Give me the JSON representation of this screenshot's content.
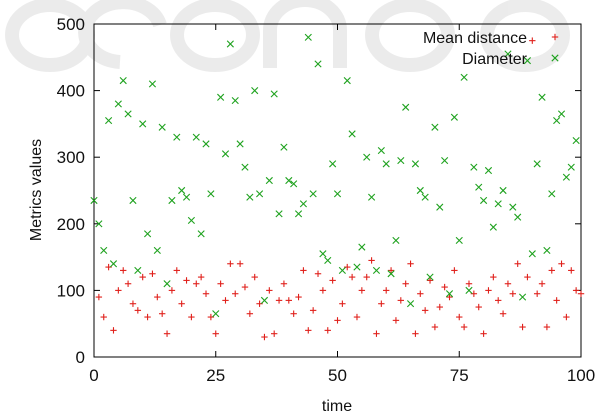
{
  "chart_data": {
    "type": "scatter",
    "title": "",
    "xlabel": "time",
    "ylabel": "Metrics values",
    "xlim": [
      0,
      100
    ],
    "ylim": [
      0,
      500
    ],
    "xticks": [
      0,
      25,
      50,
      75,
      100
    ],
    "yticks": [
      0,
      100,
      200,
      300,
      400,
      500
    ],
    "x_tick_labels": [
      "0",
      "25",
      "50",
      "75",
      "100"
    ],
    "y_tick_labels": [
      "0",
      "100",
      "200",
      "300",
      "400",
      "500"
    ],
    "grid": false,
    "legend_position": "top-right",
    "series": [
      {
        "name": "Mean distance",
        "marker": "plus",
        "color": "#e0201b",
        "points": [
          [
            1,
            90
          ],
          [
            2,
            60
          ],
          [
            3,
            135
          ],
          [
            4,
            40
          ],
          [
            5,
            100
          ],
          [
            6,
            130
          ],
          [
            7,
            110
          ],
          [
            8,
            80
          ],
          [
            9,
            70
          ],
          [
            10,
            120
          ],
          [
            11,
            60
          ],
          [
            12,
            125
          ],
          [
            13,
            90
          ],
          [
            14,
            65
          ],
          [
            15,
            35
          ],
          [
            16,
            100
          ],
          [
            17,
            130
          ],
          [
            18,
            80
          ],
          [
            19,
            115
          ],
          [
            20,
            60
          ],
          [
            21,
            110
          ],
          [
            22,
            120
          ],
          [
            23,
            95
          ],
          [
            24,
            60
          ],
          [
            25,
            35
          ],
          [
            26,
            110
          ],
          [
            27,
            85
          ],
          [
            28,
            140
          ],
          [
            29,
            95
          ],
          [
            30,
            140
          ],
          [
            31,
            105
          ],
          [
            32,
            65
          ],
          [
            33,
            120
          ],
          [
            34,
            80
          ],
          [
            35,
            30
          ],
          [
            36,
            100
          ],
          [
            37,
            35
          ],
          [
            38,
            85
          ],
          [
            39,
            110
          ],
          [
            40,
            85
          ],
          [
            41,
            65
          ],
          [
            42,
            90
          ],
          [
            43,
            130
          ],
          [
            44,
            40
          ],
          [
            45,
            70
          ],
          [
            46,
            125
          ],
          [
            47,
            100
          ],
          [
            48,
            40
          ],
          [
            49,
            115
          ],
          [
            50,
            55
          ],
          [
            51,
            80
          ],
          [
            52,
            135
          ],
          [
            53,
            120
          ],
          [
            54,
            60
          ],
          [
            55,
            100
          ],
          [
            56,
            120
          ],
          [
            57,
            145
          ],
          [
            58,
            35
          ],
          [
            59,
            80
          ],
          [
            60,
            100
          ],
          [
            61,
            130
          ],
          [
            62,
            55
          ],
          [
            63,
            85
          ],
          [
            64,
            110
          ],
          [
            65,
            140
          ],
          [
            66,
            35
          ],
          [
            67,
            95
          ],
          [
            68,
            70
          ],
          [
            69,
            115
          ],
          [
            70,
            45
          ],
          [
            71,
            75
          ],
          [
            72,
            105
          ],
          [
            73,
            90
          ],
          [
            74,
            130
          ],
          [
            75,
            60
          ],
          [
            76,
            45
          ],
          [
            77,
            110
          ],
          [
            78,
            95
          ],
          [
            79,
            75
          ],
          [
            80,
            35
          ],
          [
            81,
            100
          ],
          [
            82,
            120
          ],
          [
            83,
            85
          ],
          [
            84,
            65
          ],
          [
            85,
            110
          ],
          [
            86,
            95
          ],
          [
            87,
            140
          ],
          [
            88,
            45
          ],
          [
            89,
            120
          ],
          [
            90,
            475
          ],
          [
            91,
            95
          ],
          [
            92,
            110
          ],
          [
            93,
            45
          ],
          [
            94,
            130
          ],
          [
            95,
            85
          ],
          [
            96,
            140
          ],
          [
            97,
            60
          ],
          [
            98,
            130
          ],
          [
            99,
            100
          ],
          [
            100,
            95
          ]
        ]
      },
      {
        "name": "Diameter",
        "marker": "cross",
        "color": "#1fa21f",
        "points": [
          [
            0,
            235
          ],
          [
            1,
            200
          ],
          [
            2,
            160
          ],
          [
            3,
            355
          ],
          [
            4,
            140
          ],
          [
            5,
            380
          ],
          [
            6,
            415
          ],
          [
            7,
            365
          ],
          [
            8,
            235
          ],
          [
            9,
            130
          ],
          [
            10,
            350
          ],
          [
            11,
            185
          ],
          [
            12,
            410
          ],
          [
            13,
            160
          ],
          [
            14,
            345
          ],
          [
            15,
            110
          ],
          [
            16,
            235
          ],
          [
            17,
            330
          ],
          [
            18,
            250
          ],
          [
            19,
            240
          ],
          [
            20,
            205
          ],
          [
            21,
            330
          ],
          [
            22,
            185
          ],
          [
            23,
            320
          ],
          [
            24,
            245
          ],
          [
            25,
            65
          ],
          [
            26,
            390
          ],
          [
            27,
            305
          ],
          [
            28,
            470
          ],
          [
            29,
            385
          ],
          [
            30,
            320
          ],
          [
            31,
            285
          ],
          [
            32,
            240
          ],
          [
            33,
            400
          ],
          [
            34,
            245
          ],
          [
            35,
            85
          ],
          [
            36,
            265
          ],
          [
            37,
            395
          ],
          [
            38,
            215
          ],
          [
            39,
            315
          ],
          [
            40,
            265
          ],
          [
            41,
            260
          ],
          [
            42,
            215
          ],
          [
            43,
            230
          ],
          [
            44,
            480
          ],
          [
            45,
            245
          ],
          [
            46,
            440
          ],
          [
            47,
            155
          ],
          [
            48,
            145
          ],
          [
            49,
            290
          ],
          [
            50,
            245
          ],
          [
            51,
            130
          ],
          [
            52,
            415
          ],
          [
            53,
            335
          ],
          [
            54,
            135
          ],
          [
            55,
            165
          ],
          [
            56,
            300
          ],
          [
            57,
            240
          ],
          [
            58,
            130
          ],
          [
            59,
            310
          ],
          [
            60,
            290
          ],
          [
            61,
            125
          ],
          [
            62,
            175
          ],
          [
            63,
            295
          ],
          [
            64,
            375
          ],
          [
            65,
            80
          ],
          [
            66,
            290
          ],
          [
            67,
            250
          ],
          [
            68,
            240
          ],
          [
            69,
            120
          ],
          [
            70,
            345
          ],
          [
            71,
            225
          ],
          [
            72,
            295
          ],
          [
            73,
            95
          ],
          [
            74,
            360
          ],
          [
            75,
            175
          ],
          [
            76,
            420
          ],
          [
            77,
            100
          ],
          [
            78,
            285
          ],
          [
            79,
            255
          ],
          [
            80,
            235
          ],
          [
            81,
            280
          ],
          [
            82,
            195
          ],
          [
            83,
            230
          ],
          [
            84,
            250
          ],
          [
            85,
            455
          ],
          [
            86,
            225
          ],
          [
            87,
            210
          ],
          [
            88,
            90
          ],
          [
            89,
            445
          ],
          [
            90,
            155
          ],
          [
            91,
            290
          ],
          [
            92,
            390
          ],
          [
            93,
            160
          ],
          [
            94,
            245
          ],
          [
            95,
            355
          ],
          [
            96,
            365
          ],
          [
            97,
            270
          ],
          [
            98,
            285
          ],
          [
            99,
            325
          ]
        ]
      }
    ]
  }
}
